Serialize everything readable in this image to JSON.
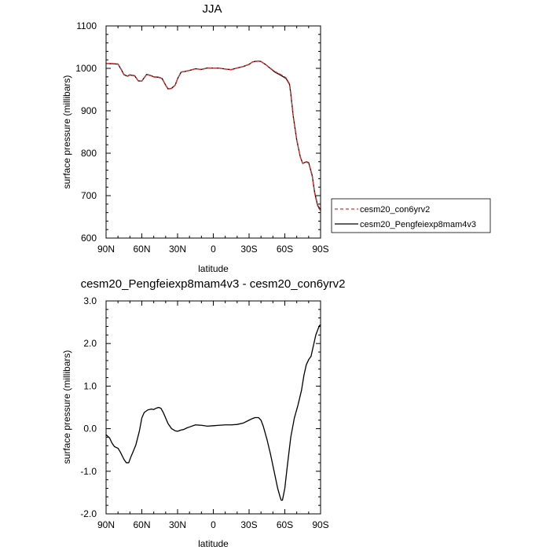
{
  "chart_data": [
    {
      "type": "line",
      "title": "JJA",
      "xlabel": "latitude",
      "ylabel": "surface pressure (millibars)",
      "xlim": [
        90,
        -90
      ],
      "ylim": [
        600,
        1100
      ],
      "x_ticks": [
        {
          "value": 90,
          "label": "90N"
        },
        {
          "value": 60,
          "label": "60N"
        },
        {
          "value": 30,
          "label": "30N"
        },
        {
          "value": 0,
          "label": "0"
        },
        {
          "value": -30,
          "label": "30S"
        },
        {
          "value": -60,
          "label": "60S"
        },
        {
          "value": -90,
          "label": "90S"
        }
      ],
      "y_ticks": [
        {
          "value": 600,
          "label": "600"
        },
        {
          "value": 700,
          "label": "700"
        },
        {
          "value": 800,
          "label": "800"
        },
        {
          "value": 900,
          "label": "900"
        },
        {
          "value": 1000,
          "label": "1000"
        },
        {
          "value": 1100,
          "label": "1100"
        }
      ],
      "grid": false,
      "legend": {
        "placement": "right",
        "entries": [
          {
            "name": "cesm20_con6yrv2",
            "color": "#e03030",
            "dash": "dashed"
          },
          {
            "name": "cesm20_Pengfeiexp8mam4v3",
            "color": "#000000",
            "dash": "solid"
          }
        ]
      },
      "x": [
        90,
        85,
        80,
        77,
        75,
        72,
        70,
        66,
        63,
        60,
        56,
        53,
        50,
        46,
        43,
        40,
        38,
        35,
        32,
        30,
        27,
        24,
        20,
        15,
        10,
        5,
        0,
        -5,
        -10,
        -15,
        -20,
        -25,
        -30,
        -33,
        -35,
        -38,
        -40,
        -44,
        -48,
        -52,
        -55,
        -58,
        -61,
        -64,
        -65,
        -67,
        -70,
        -73,
        -75,
        -78,
        -80,
        -83,
        -85,
        -87,
        -88,
        -89,
        -90
      ],
      "series": [
        {
          "name": "cesm20_con6yrv2",
          "color": "#e03030",
          "dash": "dashed",
          "values": [
            1011.5,
            1011.5,
            1010.5,
            996.6,
            985.6,
            982.2,
            985.2,
            983.0,
            970.5,
            970.0,
            985.2,
            983.2,
            979.5,
            978.6,
            975.7,
            960.0,
            951.2,
            952.5,
            960.5,
            975.5,
            991.3,
            992.5,
            995.2,
            999.0,
            997.3,
            1000.8,
            1000.6,
            1000.4,
            998.3,
            996.8,
            1000.8,
            1004.1,
            1009.3,
            1015.1,
            1016.1,
            1016.9,
            1016.0,
            1008.8,
            1000.1,
            991.9,
            987.9,
            983.0,
            977.9,
            963.4,
            941.6,
            889.3,
            831.3,
            791.0,
            775.6,
            779.1,
            776.8,
            745.2,
            705.9,
            681.0,
            672.0,
            668.4,
            665.6
          ]
        },
        {
          "name": "cesm20_Pengfeiexp8mam4v3",
          "color": "#000000",
          "dash": "solid",
          "values": [
            1011.4,
            1011.0,
            1010.0,
            996.0,
            985.0,
            981.6,
            984.4,
            982.4,
            970.5,
            970.2,
            985.6,
            983.7,
            980.0,
            979.1,
            976.2,
            960.4,
            951.6,
            953.0,
            960.6,
            975.5,
            991.3,
            992.5,
            995.2,
            999.1,
            997.4,
            1000.9,
            1000.7,
            1000.5,
            998.4,
            996.9,
            1000.9,
            1004.2,
            1009.5,
            1015.3,
            1016.3,
            1017.1,
            1016.2,
            1008.7,
            999.6,
            990.6,
            986.2,
            981.3,
            976.3,
            962.0,
            940.4,
            888.5,
            831.0,
            791.2,
            776.0,
            779.8,
            778.0,
            747.0,
            708.0,
            683.3,
            674.4,
            670.8,
            668.0
          ]
        }
      ]
    },
    {
      "type": "line",
      "title": "cesm20_Pengfeiexp8mam4v3 - cesm20_con6yrv2",
      "xlabel": "latitude",
      "ylabel": "surface pressure (millibars)",
      "xlim": [
        90,
        -90
      ],
      "ylim": [
        -2.0,
        3.0
      ],
      "x_ticks": [
        {
          "value": 90,
          "label": "90N"
        },
        {
          "value": 60,
          "label": "60N"
        },
        {
          "value": 30,
          "label": "30N"
        },
        {
          "value": 0,
          "label": "0"
        },
        {
          "value": -30,
          "label": "30S"
        },
        {
          "value": -60,
          "label": "60S"
        },
        {
          "value": -90,
          "label": "90S"
        }
      ],
      "y_ticks": [
        {
          "value": -2.0,
          "label": "-2.0"
        },
        {
          "value": -1.0,
          "label": "-1.0"
        },
        {
          "value": 0.0,
          "label": "0.0"
        },
        {
          "value": 1.0,
          "label": "1.0"
        },
        {
          "value": 2.0,
          "label": "2.0"
        },
        {
          "value": 3.0,
          "label": "3.0"
        }
      ],
      "grid": false,
      "x": [
        90,
        87,
        85,
        83,
        80,
        78,
        75,
        73,
        71,
        69,
        67,
        65,
        62,
        60,
        58,
        55,
        52,
        50,
        48,
        46,
        44,
        42,
        40,
        38,
        35,
        32,
        30,
        27,
        25,
        22,
        20,
        15,
        10,
        5,
        0,
        -5,
        -10,
        -15,
        -20,
        -25,
        -30,
        -33,
        -35,
        -38,
        -40,
        -42,
        -45,
        -48,
        -51,
        -54,
        -56,
        -57,
        -58,
        -60,
        -62,
        -65,
        -68,
        -71,
        -74,
        -76,
        -78,
        -80,
        -82,
        -84,
        -86,
        -88,
        -89,
        -90
      ],
      "series": [
        {
          "name": "",
          "color": "#000000",
          "dash": "solid",
          "values": [
            -0.14,
            -0.22,
            -0.34,
            -0.42,
            -0.46,
            -0.55,
            -0.72,
            -0.8,
            -0.8,
            -0.65,
            -0.52,
            -0.38,
            -0.05,
            0.25,
            0.38,
            0.44,
            0.46,
            0.45,
            0.48,
            0.5,
            0.48,
            0.38,
            0.25,
            0.12,
            0.0,
            -0.05,
            -0.06,
            -0.03,
            -0.02,
            0.02,
            0.04,
            0.09,
            0.08,
            0.06,
            0.07,
            0.08,
            0.09,
            0.09,
            0.1,
            0.13,
            0.2,
            0.24,
            0.26,
            0.26,
            0.2,
            0.05,
            -0.25,
            -0.6,
            -1.0,
            -1.4,
            -1.6,
            -1.68,
            -1.68,
            -1.4,
            -0.9,
            -0.2,
            0.25,
            0.55,
            0.9,
            1.25,
            1.5,
            1.62,
            1.7,
            1.95,
            2.2,
            2.35,
            2.42,
            2.44
          ]
        }
      ]
    }
  ]
}
